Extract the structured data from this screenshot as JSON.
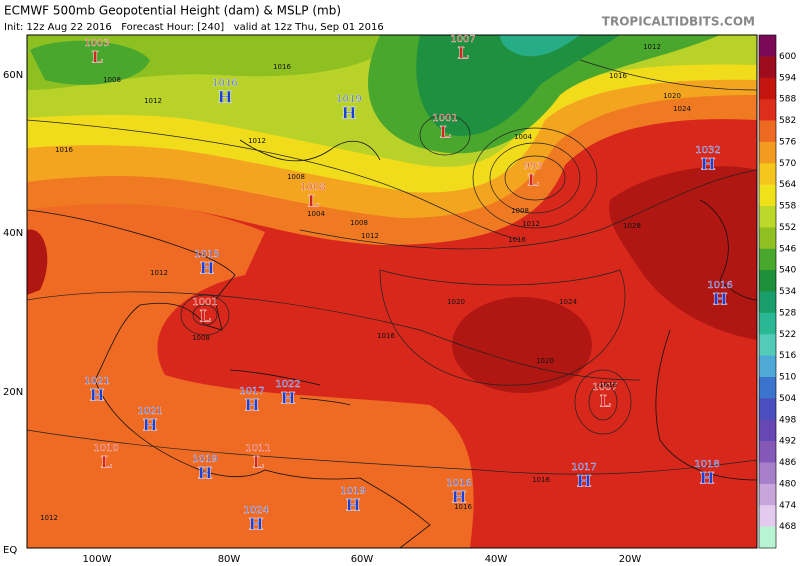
{
  "header": {
    "title": "ECMWF 500mb Geopotential Height (dam) & MSLP (mb)",
    "subtitle": "Init: 12z Aug 22 2016   Forecast Hour: [240]   valid at 12z Thu, Sep 01 2016",
    "site": "TROPICALTIDBITS.COM"
  },
  "axes": {
    "latitude": [
      "60N",
      "40N",
      "20N",
      "EQ"
    ],
    "longitude": [
      "100W",
      "80W",
      "60W",
      "40W",
      "20W"
    ]
  },
  "colorbar": {
    "labels": [
      "600",
      "594",
      "588",
      "582",
      "576",
      "570",
      "564",
      "558",
      "552",
      "546",
      "540",
      "534",
      "528",
      "522",
      "516",
      "510",
      "504",
      "498",
      "492",
      "486",
      "480",
      "474",
      "468"
    ]
  },
  "centers": [
    {
      "letter": "L",
      "pressure": "1003"
    },
    {
      "letter": "H",
      "pressure": "1016"
    },
    {
      "letter": "H",
      "pressure": "1019"
    },
    {
      "letter": "L",
      "pressure": "1007"
    },
    {
      "letter": "L",
      "pressure": "1001"
    },
    {
      "letter": "L",
      "pressure": "993"
    },
    {
      "letter": "H",
      "pressure": "1032"
    },
    {
      "letter": "L",
      "pressure": "1008"
    },
    {
      "letter": "H",
      "pressure": "1015"
    },
    {
      "letter": "L",
      "pressure": "1001"
    },
    {
      "letter": "H",
      "pressure": "1016"
    },
    {
      "letter": "H",
      "pressure": "1021"
    },
    {
      "letter": "H",
      "pressure": "1021"
    },
    {
      "letter": "H",
      "pressure": "1017"
    },
    {
      "letter": "H",
      "pressure": "1022"
    },
    {
      "letter": "L",
      "pressure": "1007"
    },
    {
      "letter": "L",
      "pressure": "1010"
    },
    {
      "letter": "L",
      "pressure": "1011"
    },
    {
      "letter": "H",
      "pressure": "1019"
    },
    {
      "letter": "H",
      "pressure": "1024"
    },
    {
      "letter": "H",
      "pressure": "1019"
    },
    {
      "letter": "H",
      "pressure": "1016"
    },
    {
      "letter": "H",
      "pressure": "1017"
    },
    {
      "letter": "H",
      "pressure": "1018"
    }
  ],
  "contour_labels": [
    "1012",
    "1016",
    "1020",
    "1024",
    "1016",
    "1008",
    "1012",
    "1016",
    "1012",
    "1008",
    "1004",
    "1008",
    "1012",
    "1016",
    "1004",
    "1008",
    "1012",
    "1020",
    "1024",
    "1016",
    "1020",
    "1016",
    "1012",
    "1016",
    "1016",
    "1028",
    "1012",
    "1008"
  ]
}
